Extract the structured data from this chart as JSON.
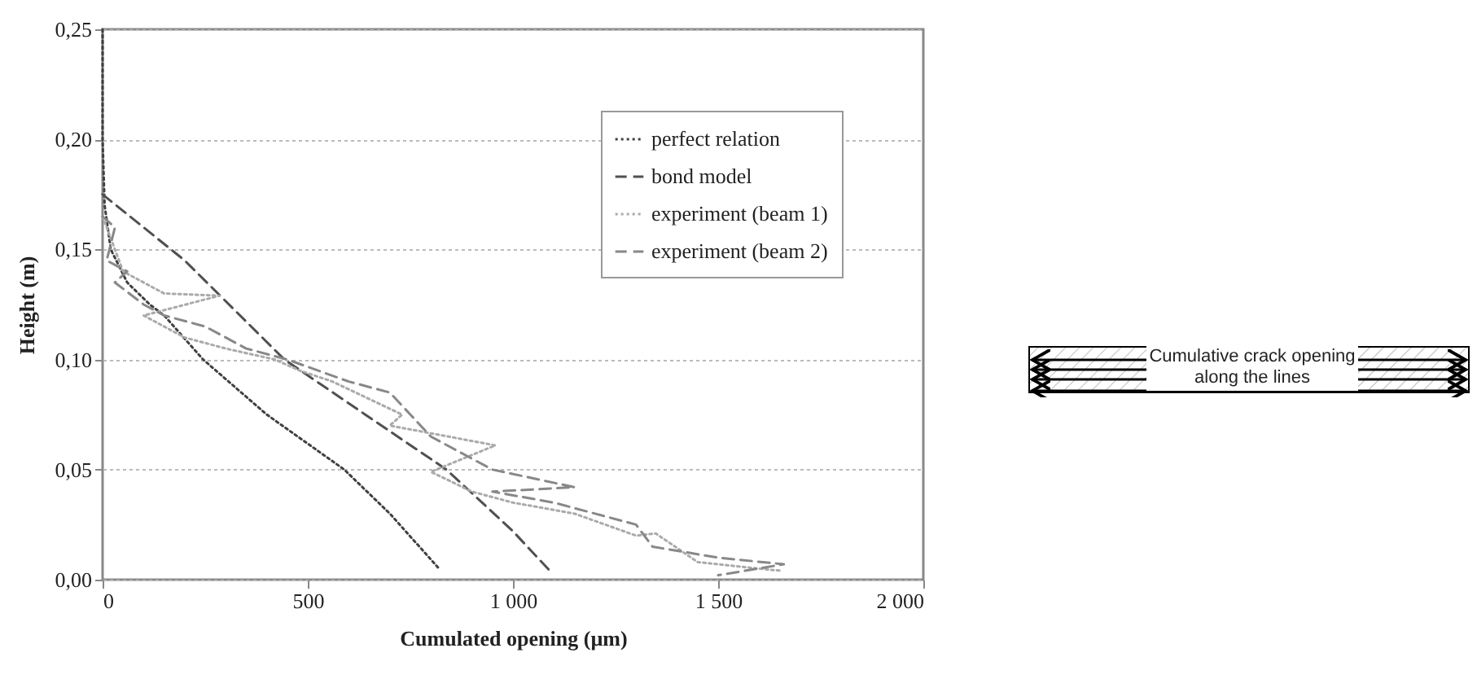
{
  "chart_data": {
    "type": "line",
    "xlabel": "Cumulated opening (µm)",
    "ylabel": "Height (m)",
    "xlim": [
      0,
      2000
    ],
    "ylim": [
      0,
      0.25
    ],
    "xticks": [
      0,
      500,
      {
        "value": 1000,
        "label": "1 000"
      },
      {
        "value": 1500,
        "label": "1 500"
      },
      {
        "value": 2000,
        "label": "2 000"
      }
    ],
    "yticks": [
      {
        "value": 0,
        "label": "0,00"
      },
      {
        "value": 0.05,
        "label": "0,05"
      },
      {
        "value": 0.1,
        "label": "0,10"
      },
      {
        "value": 0.15,
        "label": "0,15"
      },
      {
        "value": 0.2,
        "label": "0,20"
      },
      {
        "value": 0.25,
        "label": "0,25"
      }
    ],
    "grid": "y",
    "legend": "top right",
    "annotations": [
      "Cumulative crack opening along the lines"
    ],
    "series": [
      {
        "name": "perfect relation",
        "color": "#404040",
        "line_style": "dotted",
        "x": [
          0,
          0,
          5,
          20,
          60,
          115,
          150,
          245,
          400,
          589,
          700,
          820
        ],
        "values": [
          0.25,
          0.2,
          0.17,
          0.15,
          0.135,
          0.125,
          0.12,
          0.1,
          0.075,
          0.05,
          0.03,
          0.005
        ]
      },
      {
        "name": "bond model",
        "color": "#505050",
        "line_style": "dashed",
        "x": [
          0,
          200,
          443,
          640,
          838,
          1000,
          1095
        ],
        "values": [
          0.175,
          0.145,
          0.1,
          0.075,
          0.05,
          0.022,
          0.003
        ]
      },
      {
        "name": "experiment (beam 1)",
        "color": "#aaaaaa",
        "line_style": "dotted",
        "x": [
          0,
          20,
          50,
          150,
          285,
          100,
          200,
          300,
          420,
          480,
          560,
          730,
          700,
          957,
          800,
          900,
          1000,
          1150,
          1300,
          1348,
          1450,
          1600,
          1656
        ],
        "values": [
          0.165,
          0.155,
          0.14,
          0.13,
          0.129,
          0.12,
          0.11,
          0.105,
          0.1,
          0.095,
          0.09,
          0.075,
          0.07,
          0.061,
          0.049,
          0.04,
          0.035,
          0.03,
          0.02,
          0.021,
          0.008,
          0.005,
          0.004
        ]
      },
      {
        "name": "experiment (beam 2)",
        "color": "#888888",
        "line_style": "dashed",
        "x": [
          0,
          30,
          10,
          60,
          30,
          100,
          150,
          250,
          350,
          450,
          600,
          700,
          750,
          800,
          850,
          950,
          1150,
          950,
          1100,
          1200,
          1300,
          1340,
          1500,
          1660,
          1500
        ],
        "values": [
          0.165,
          0.16,
          0.145,
          0.14,
          0.135,
          0.125,
          0.12,
          0.115,
          0.105,
          0.1,
          0.09,
          0.085,
          0.075,
          0.065,
          0.06,
          0.05,
          0.042,
          0.04,
          0.035,
          0.03,
          0.025,
          0.015,
          0.01,
          0.007,
          0.002
        ]
      }
    ]
  }
}
